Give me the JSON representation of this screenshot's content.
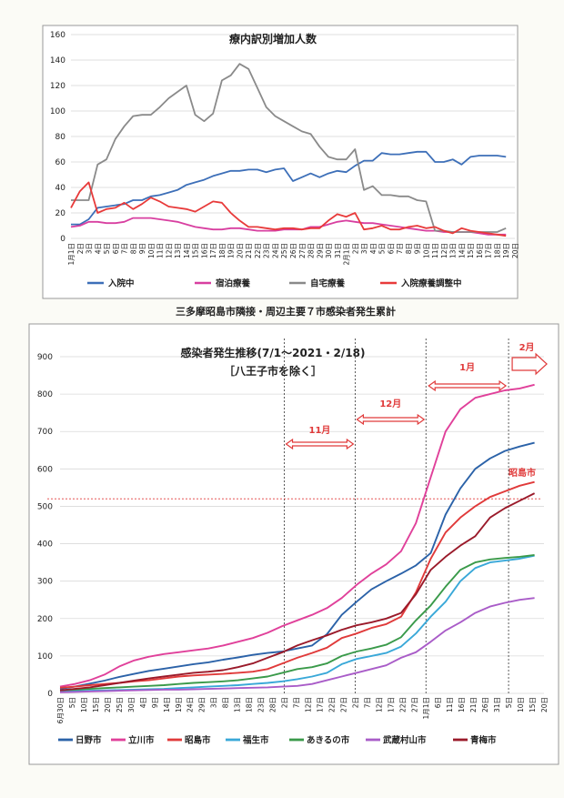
{
  "chart_data": [
    {
      "type": "line",
      "title": "療内訳別増加人数",
      "ylim": [
        0,
        160
      ],
      "yticks": [
        0,
        20,
        40,
        60,
        80,
        100,
        120,
        140,
        160
      ],
      "x": [
        "1月1日",
        "2日",
        "3日",
        "4日",
        "5日",
        "6日",
        "7日",
        "8日",
        "9日",
        "10日",
        "11日",
        "12日",
        "13日",
        "14日",
        "15日",
        "16日",
        "17日",
        "18日",
        "19日",
        "20日",
        "21日",
        "22日",
        "23日",
        "24日",
        "25日",
        "26日",
        "27日",
        "28日",
        "29日",
        "30日",
        "31日",
        "2月1日",
        "2日",
        "3日",
        "4日",
        "5日",
        "6日",
        "7日",
        "8日",
        "9日",
        "10日",
        "11日",
        "12日",
        "13日",
        "14日",
        "15日",
        "16日",
        "17日",
        "18日",
        "19日",
        "20日"
      ],
      "grid": true,
      "legend_position": "bottom",
      "series": [
        {
          "name": "入院中",
          "color": "#3d6fb8",
          "values": [
            11,
            11,
            15,
            24,
            25,
            26,
            27,
            30,
            30,
            33,
            34,
            36,
            38,
            42,
            44,
            46,
            49,
            51,
            53,
            53,
            54,
            54,
            52,
            54,
            55,
            45,
            48,
            51,
            48,
            51,
            53,
            52,
            57,
            61,
            61,
            67,
            66,
            66,
            67,
            68,
            68,
            60,
            60,
            62,
            58,
            64,
            65,
            65,
            65,
            64,
            null
          ]
        },
        {
          "name": "宿泊療養",
          "color": "#d83fa0",
          "values": [
            9,
            10,
            13,
            13,
            12,
            12,
            13,
            16,
            16,
            16,
            15,
            14,
            13,
            11,
            9,
            8,
            7,
            7,
            8,
            8,
            7,
            6,
            6,
            6,
            7,
            7,
            7,
            9,
            9,
            11,
            13,
            14,
            13,
            12,
            12,
            11,
            10,
            9,
            8,
            7,
            6,
            6,
            5,
            5,
            5,
            5,
            4,
            3,
            3,
            3,
            null
          ]
        },
        {
          "name": "自宅療養",
          "color": "#8a8a8a",
          "values": [
            30,
            30,
            30,
            58,
            62,
            78,
            88,
            96,
            97,
            97,
            103,
            110,
            115,
            120,
            97,
            92,
            98,
            124,
            128,
            137,
            133,
            118,
            103,
            96,
            92,
            88,
            84,
            82,
            72,
            64,
            62,
            62,
            70,
            38,
            41,
            34,
            34,
            33,
            33,
            30,
            29,
            6,
            6,
            5,
            5,
            5,
            5,
            5,
            5,
            8,
            null
          ]
        },
        {
          "name": "入院療養調整中",
          "color": "#e83a3a",
          "values": [
            24,
            37,
            44,
            20,
            23,
            24,
            28,
            23,
            27,
            32,
            29,
            25,
            24,
            23,
            21,
            25,
            29,
            28,
            20,
            14,
            9,
            9,
            8,
            7,
            8,
            8,
            7,
            8,
            8,
            14,
            19,
            17,
            20,
            7,
            8,
            10,
            7,
            7,
            9,
            10,
            8,
            9,
            6,
            4,
            8,
            6,
            5,
            4,
            3,
            2,
            null
          ]
        }
      ]
    },
    {
      "type": "line",
      "title": "感染者発生推移(7/1～2021・2/18)",
      "subtitle": "［八王子市を除く］",
      "ylim": [
        0,
        900
      ],
      "yticks": [
        0,
        100,
        200,
        300,
        400,
        500,
        600,
        700,
        800,
        900
      ],
      "xticks": [
        "6月30日",
        "5日",
        "10日",
        "15日",
        "20日",
        "25日",
        "30日",
        "4日",
        "9日",
        "14日",
        "19日",
        "24日",
        "29日",
        "3日",
        "8日",
        "13日",
        "18日",
        "23日",
        "28日",
        "2日",
        "7日",
        "12日",
        "17日",
        "22日",
        "27日",
        "2日",
        "7日",
        "12日",
        "17日",
        "22日",
        "27日",
        "1月1日",
        "6日",
        "11日",
        "16日",
        "21日",
        "26日",
        "31日",
        "5日",
        "10日",
        "15日",
        "20日"
      ],
      "grid": true,
      "legend_position": "bottom",
      "annotations": [
        "11月",
        "12月",
        "1月",
        "2月",
        "昭島市"
      ],
      "series": [
        {
          "name": "日野市",
          "color": "#2b62a8",
          "values": [
            12,
            18,
            26,
            34,
            44,
            52,
            60,
            66,
            72,
            78,
            83,
            90,
            96,
            103,
            108,
            112,
            120,
            128,
            158,
            210,
            245,
            278,
            300,
            320,
            342,
            375,
            478,
            548,
            600,
            628,
            648,
            660,
            670
          ]
        },
        {
          "name": "立川市",
          "color": "#e0409a",
          "values": [
            18,
            25,
            35,
            50,
            72,
            88,
            98,
            105,
            110,
            115,
            120,
            128,
            138,
            148,
            162,
            180,
            195,
            210,
            228,
            255,
            290,
            320,
            345,
            380,
            455,
            578,
            700,
            760,
            790,
            800,
            810,
            815,
            825
          ]
        },
        {
          "name": "昭島市",
          "color": "#e03a3a",
          "values": [
            15,
            18,
            22,
            25,
            28,
            32,
            35,
            40,
            45,
            48,
            50,
            52,
            55,
            58,
            65,
            80,
            95,
            108,
            122,
            148,
            160,
            175,
            185,
            205,
            270,
            360,
            430,
            470,
            500,
            525,
            540,
            555,
            565
          ]
        },
        {
          "name": "福生市",
          "color": "#39a8d8",
          "values": [
            5,
            6,
            7,
            8,
            9,
            10,
            11,
            12,
            14,
            16,
            18,
            20,
            22,
            25,
            28,
            32,
            38,
            45,
            55,
            78,
            92,
            100,
            108,
            125,
            160,
            205,
            245,
            300,
            335,
            350,
            355,
            360,
            368
          ]
        },
        {
          "name": "あきるの市",
          "color": "#3a9a4a",
          "values": [
            8,
            10,
            12,
            14,
            16,
            18,
            20,
            22,
            25,
            28,
            30,
            32,
            35,
            40,
            45,
            55,
            65,
            70,
            80,
            100,
            112,
            120,
            130,
            150,
            195,
            235,
            285,
            330,
            350,
            358,
            362,
            365,
            370
          ]
        },
        {
          "name": "武蔵村山市",
          "color": "#a95cc8",
          "values": [
            3,
            4,
            5,
            6,
            7,
            8,
            9,
            10,
            10,
            11,
            12,
            13,
            14,
            15,
            16,
            18,
            20,
            25,
            35,
            45,
            55,
            65,
            75,
            95,
            110,
            138,
            168,
            190,
            215,
            232,
            242,
            250,
            255
          ]
        },
        {
          "name": "青梅市",
          "color": "#9a1a2a",
          "values": [
            8,
            12,
            16,
            22,
            28,
            34,
            40,
            45,
            50,
            55,
            58,
            62,
            70,
            80,
            95,
            110,
            128,
            142,
            155,
            170,
            182,
            190,
            200,
            215,
            265,
            330,
            365,
            395,
            420,
            470,
            495,
            515,
            535
          ]
        }
      ]
    }
  ],
  "middle_caption": "三多摩昭島市隣接・周辺主要７市感染者発生累計"
}
